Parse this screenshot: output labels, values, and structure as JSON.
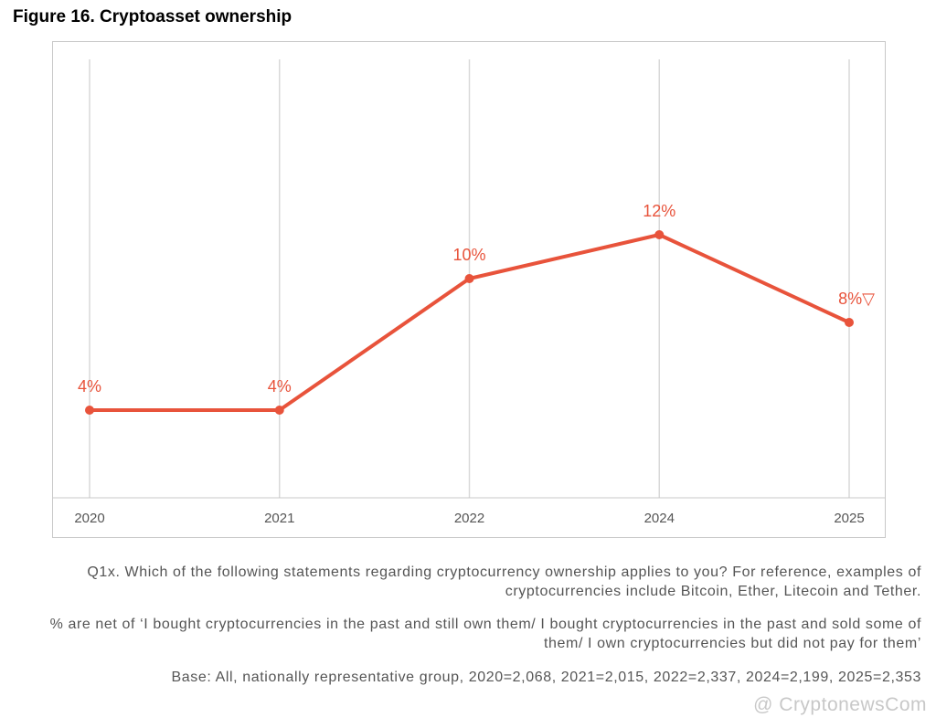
{
  "chart_data": {
    "type": "line",
    "title": "Figure 16. Cryptoasset ownership",
    "categories": [
      "2020",
      "2021",
      "2022",
      "2024",
      "2025"
    ],
    "values": [
      4,
      4,
      10,
      12,
      8
    ],
    "value_labels": [
      "4%",
      "4%",
      "10%",
      "12%",
      "8%▽"
    ],
    "color": "#e8533b",
    "ylim": [
      0,
      20
    ],
    "grid": true,
    "notes": [
      "Q1x. Which of the following statements regarding cryptocurrency ownership applies to you? For reference, examples of cryptocurrencies include Bitcoin, Ether, Litecoin and Tether.",
      "% are net of ‘I bought cryptocurrencies in the past and still own them/ I bought cryptocurrencies in the past and sold some of them/ I own cryptocurrencies but did not pay for them’",
      "Base: All, nationally representative group, 2020=2,068, 2021=2,015, 2022=2,337, 2024=2,199, 2025=2,353"
    ],
    "watermark": "@ CryptonewsCom"
  }
}
